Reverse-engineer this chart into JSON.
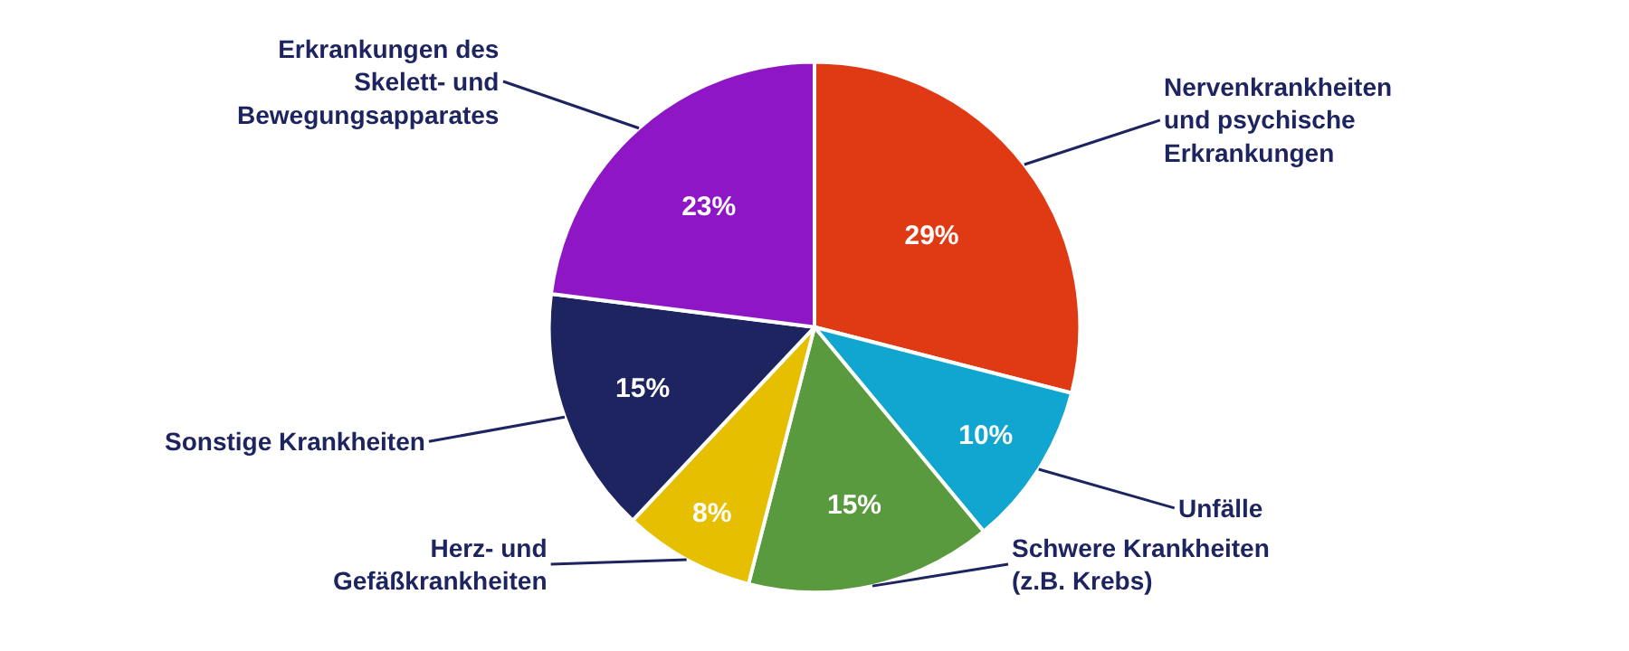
{
  "chart_data": {
    "type": "pie",
    "categories": [
      "Nervenkrankheiten und psychische Erkrankungen",
      "Unfälle",
      "Schwere Krankheiten (z.B. Krebs)",
      "Herz- und Gefäßkrankheiten",
      "Sonstige Krankheiten",
      "Erkrankungen des Skelett- und Bewegungsapparates"
    ],
    "values": [
      29,
      10,
      15,
      8,
      15,
      23
    ],
    "value_labels": [
      "29%",
      "10%",
      "15%",
      "8%",
      "15%",
      "23%"
    ],
    "colors": [
      "#e03a14",
      "#10a6d0",
      "#5a9a3e",
      "#e6bf00",
      "#1d2460",
      "#8e16c4"
    ],
    "legend": false
  }
}
